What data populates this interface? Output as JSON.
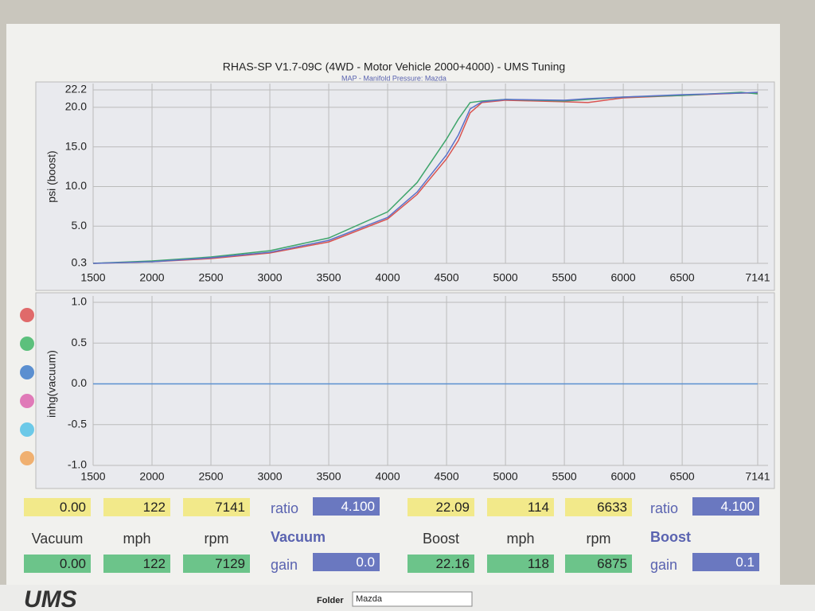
{
  "chart_data": [
    {
      "type": "line",
      "title": "RHAS-SP V1.7-09C  (4WD - Motor Vehicle 2000+4000) - UMS Tuning",
      "subtitle": "MAP - Manifold Pressure: Mazda",
      "y_label": "psi (boost)",
      "x": [
        1500,
        2000,
        2500,
        3000,
        3500,
        4000,
        4250,
        4500,
        4600,
        4700,
        4800,
        5000,
        5500,
        5700,
        6000,
        6500,
        7000,
        7141
      ],
      "xlim": [
        1500,
        7141
      ],
      "xticks": [
        1500,
        2000,
        2500,
        3000,
        3500,
        4000,
        4500,
        5000,
        5500,
        6000,
        6500,
        7141
      ],
      "ylim": [
        0.3,
        22.2
      ],
      "yticks": [
        0.3,
        {
          "value": 5,
          "label": "5.0"
        },
        {
          "value": 10,
          "label": "10.0"
        },
        {
          "value": 15,
          "label": "15.0"
        },
        {
          "value": 20,
          "label": "20.0"
        },
        22.2
      ],
      "grid": true,
      "series": [
        {
          "color": "#d9534f",
          "values": [
            0.3,
            0.5,
            0.9,
            1.6,
            3.0,
            5.9,
            9.0,
            13.5,
            15.8,
            19.3,
            20.6,
            20.9,
            20.7,
            20.6,
            21.2,
            21.5,
            21.8,
            21.8
          ]
        },
        {
          "color": "#3fa56b",
          "values": [
            0.3,
            0.6,
            1.1,
            1.9,
            3.5,
            6.8,
            10.5,
            16.0,
            18.5,
            20.6,
            20.8,
            21.0,
            20.8,
            21.0,
            21.3,
            21.5,
            21.9,
            21.7
          ]
        },
        {
          "color": "#5b70c8",
          "values": [
            0.3,
            0.5,
            1.0,
            1.7,
            3.2,
            6.1,
            9.3,
            14.0,
            16.5,
            19.8,
            20.7,
            21.0,
            20.9,
            21.1,
            21.3,
            21.6,
            21.8,
            21.9
          ]
        }
      ]
    },
    {
      "type": "line",
      "y_label": "inhg(vacuum)",
      "x": [
        1500,
        7141
      ],
      "xlim": [
        1500,
        7141
      ],
      "xticks": [
        1500,
        2000,
        2500,
        3000,
        3500,
        4000,
        4500,
        5000,
        5500,
        6000,
        6500,
        7141
      ],
      "ylim": [
        -1,
        1
      ],
      "yticks": [
        {
          "value": 1,
          "label": "1.0"
        },
        {
          "value": 0.5,
          "label": "0.5"
        },
        {
          "value": 0,
          "label": "0.0"
        },
        {
          "value": -0.5,
          "label": "-0.5"
        },
        {
          "value": -1,
          "label": "-1.0"
        }
      ],
      "grid": true,
      "series": [
        {
          "color": "#5b8fd0",
          "values": [
            0,
            0
          ]
        }
      ]
    }
  ],
  "legend_colors": [
    "#e06a6a",
    "#5cc07c",
    "#5b8fd0",
    "#e07ab8",
    "#6cc9e8",
    "#f0b070"
  ],
  "readouts": [
    {
      "row1": [
        "0.00",
        "122",
        "7141"
      ],
      "ratio_label": "ratio",
      "ratio": "4.100",
      "labels": [
        "Vacuum",
        "mph",
        "rpm"
      ],
      "mode": "Vacuum",
      "row2": [
        "0.00",
        "122",
        "7129"
      ],
      "gain_label": "gain",
      "gain": "0.0"
    },
    {
      "row1": [
        "22.09",
        "114",
        "6633"
      ],
      "ratio_label": "ratio",
      "ratio": "4.100",
      "labels": [
        "Boost",
        "mph",
        "rpm"
      ],
      "mode": "Boost",
      "row2": [
        "22.16",
        "118",
        "6875"
      ],
      "gain_label": "gain",
      "gain": "0.1"
    }
  ],
  "footer": {
    "folder_label": "Folder",
    "folder": "Mazda"
  }
}
